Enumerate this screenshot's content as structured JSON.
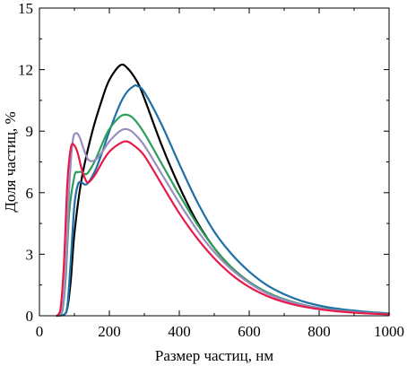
{
  "chart_data": {
    "type": "line",
    "title": "",
    "xlabel": "Размер частиц, нм",
    "ylabel": "Доля частиц, %",
    "xlim": [
      0,
      1000
    ],
    "ylim": [
      0,
      15
    ],
    "x_ticks": [
      0,
      200,
      400,
      600,
      800,
      1000
    ],
    "y_ticks": [
      0,
      3,
      6,
      9,
      12,
      15
    ],
    "x_tick_labels": [
      "0",
      "200",
      "400",
      "600",
      "800",
      "1000"
    ],
    "y_tick_labels": [
      "0",
      "3",
      "6",
      "9",
      "12",
      "15"
    ],
    "grid": false,
    "legend": "none",
    "series": [
      {
        "color": "#000000",
        "x": [
          50,
          70,
          80,
          90,
          100,
          120,
          150,
          180,
          200,
          230,
          250,
          280,
          300,
          350,
          400,
          450,
          500,
          550,
          600,
          650,
          700,
          750,
          800,
          850,
          900,
          950,
          1000
        ],
        "y": [
          0,
          0.05,
          0.4,
          1.8,
          4.0,
          6.6,
          8.9,
          10.6,
          11.5,
          12.2,
          12.1,
          11.4,
          10.6,
          8.3,
          6.3,
          4.6,
          3.3,
          2.35,
          1.65,
          1.15,
          0.8,
          0.55,
          0.38,
          0.27,
          0.19,
          0.13,
          0.09
        ]
      },
      {
        "color": "#1f6fa8",
        "x": [
          50,
          70,
          80,
          90,
          100,
          110,
          120,
          130,
          140,
          160,
          180,
          200,
          230,
          250,
          270,
          280,
          300,
          350,
          400,
          450,
          500,
          550,
          600,
          650,
          700,
          750,
          800,
          850,
          900,
          950,
          1000
        ],
        "y": [
          0,
          0.05,
          0.5,
          2.8,
          5.4,
          6.4,
          6.5,
          6.4,
          6.5,
          7.1,
          8.0,
          9.0,
          10.3,
          10.9,
          11.2,
          11.2,
          10.9,
          9.3,
          7.4,
          5.6,
          4.1,
          3.0,
          2.15,
          1.5,
          1.05,
          0.72,
          0.5,
          0.35,
          0.25,
          0.17,
          0.12
        ]
      },
      {
        "color": "#2ca05a",
        "x": [
          50,
          65,
          75,
          85,
          100,
          110,
          120,
          130,
          140,
          160,
          180,
          200,
          230,
          250,
          270,
          300,
          350,
          400,
          450,
          500,
          550,
          600,
          650,
          700,
          750,
          800,
          850,
          900,
          950,
          1000
        ],
        "y": [
          0,
          0.2,
          1.8,
          5.0,
          6.8,
          7.0,
          7.0,
          6.9,
          7.0,
          7.6,
          8.4,
          9.1,
          9.7,
          9.8,
          9.6,
          8.9,
          7.4,
          5.9,
          4.5,
          3.3,
          2.35,
          1.65,
          1.15,
          0.8,
          0.55,
          0.38,
          0.27,
          0.19,
          0.13,
          0.09
        ]
      },
      {
        "color": "#9b8dbf",
        "x": [
          50,
          65,
          75,
          85,
          95,
          105,
          115,
          125,
          140,
          160,
          180,
          200,
          230,
          250,
          270,
          300,
          350,
          400,
          450,
          500,
          550,
          600,
          650,
          700,
          750,
          800,
          850,
          900,
          950,
          1000
        ],
        "y": [
          0,
          0.3,
          2.2,
          6.2,
          8.5,
          8.9,
          8.7,
          8.2,
          7.6,
          7.6,
          8.0,
          8.5,
          9.0,
          9.1,
          8.9,
          8.3,
          6.9,
          5.5,
          4.2,
          3.1,
          2.25,
          1.6,
          1.1,
          0.77,
          0.53,
          0.37,
          0.26,
          0.18,
          0.12,
          0.08
        ]
      },
      {
        "color": "#e8194a",
        "x": [
          50,
          60,
          70,
          80,
          90,
          100,
          110,
          120,
          130,
          140,
          160,
          180,
          200,
          230,
          250,
          270,
          300,
          350,
          400,
          450,
          500,
          550,
          600,
          650,
          700,
          750,
          800,
          850,
          900,
          950,
          1000
        ],
        "y": [
          0,
          0.3,
          2.5,
          6.5,
          8.2,
          8.3,
          7.9,
          7.2,
          6.7,
          6.5,
          6.9,
          7.5,
          8.0,
          8.4,
          8.5,
          8.3,
          7.8,
          6.4,
          5.0,
          3.8,
          2.8,
          2.0,
          1.4,
          0.97,
          0.67,
          0.46,
          0.32,
          0.22,
          0.15,
          0.1,
          0.07
        ]
      }
    ]
  }
}
